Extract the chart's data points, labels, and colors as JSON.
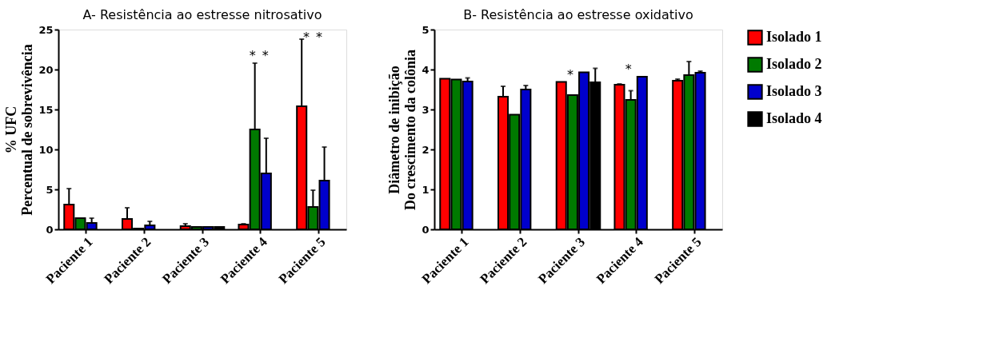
{
  "chart_data": [
    {
      "type": "bar",
      "title": "A- Resistência ao estresse nitrosativo",
      "ylabel": "% UFC\nPercentual de sobrevivência",
      "categories": [
        "Paciente 1",
        "Paciente 2",
        "Paciente 3",
        "Paciente 4",
        "Paciente 5"
      ],
      "series": [
        {
          "name": "Isolado 1",
          "color": "#ff0000",
          "values": [
            3.1,
            1.3,
            0.4,
            0.6,
            15.4
          ],
          "errors": [
            [
              3.1,
              5.1
            ],
            [
              1.3,
              2.7
            ],
            [
              0.4,
              0.7
            ],
            [
              0.6,
              0.7
            ],
            [
              15.4,
              23.8
            ]
          ]
        },
        {
          "name": "Isolado 2",
          "color": "#007a00",
          "values": [
            1.4,
            0.1,
            0.3,
            12.5,
            2.8
          ],
          "errors": [
            null,
            null,
            null,
            [
              12.5,
              20.8
            ],
            [
              2.8,
              4.9
            ]
          ]
        },
        {
          "name": "Isolado 3",
          "color": "#0000cc",
          "values": [
            0.8,
            0.5,
            0.3,
            7.0,
            6.1
          ],
          "errors": [
            [
              0.8,
              1.4
            ],
            [
              0.5,
              1.0
            ],
            null,
            [
              7.0,
              11.4
            ],
            [
              6.1,
              10.3
            ]
          ]
        },
        {
          "name": "Isolado 4",
          "color": "#000000",
          "values": [
            null,
            null,
            0.3,
            null,
            null
          ],
          "errors": [
            null,
            null,
            null,
            null,
            null
          ]
        }
      ],
      "ylim": [
        0,
        25
      ],
      "yticks": [
        0,
        5,
        10,
        15,
        20,
        25
      ],
      "grid": false,
      "legend": "right",
      "annotations": [
        {
          "text": "*",
          "x": "Paciente 4",
          "y": 20.8
        },
        {
          "text": "*",
          "x": "Paciente 4",
          "y": 20.8
        },
        "*",
        "*"
      ]
    },
    {
      "type": "bar",
      "title": "B- Resistência ao estresse oxidativo",
      "ylabel": "Diâmetro de inibição\nDo crescimento da colônia",
      "categories": [
        "Paciente 1",
        "Paciente 2",
        "Paciente 3",
        "Paciente 4",
        "Paciente 5"
      ],
      "series": [
        {
          "name": "Isolado 1",
          "color": "#ff0000",
          "values": [
            3.77,
            3.32,
            3.69,
            3.62,
            3.72
          ],
          "errors": [
            null,
            [
              3.32,
              3.58
            ],
            null,
            [
              3.62,
              3.64
            ],
            [
              3.72,
              3.76
            ]
          ]
        },
        {
          "name": "Isolado 2",
          "color": "#007a00",
          "values": [
            3.75,
            2.87,
            3.36,
            3.24,
            3.86
          ],
          "errors": [
            null,
            null,
            null,
            [
              3.24,
              3.47
            ],
            [
              3.86,
              4.2
            ]
          ]
        },
        {
          "name": "Isolado 3",
          "color": "#0000cc",
          "values": [
            3.7,
            3.5,
            3.93,
            3.82,
            3.92
          ],
          "errors": [
            [
              3.7,
              3.79
            ],
            [
              3.5,
              3.6
            ],
            null,
            null,
            [
              3.92,
              3.96
            ]
          ]
        },
        {
          "name": "Isolado 4",
          "color": "#000000",
          "values": [
            null,
            null,
            3.68,
            null,
            null
          ],
          "errors": [
            null,
            null,
            [
              3.68,
              4.03
            ],
            null,
            null
          ]
        }
      ],
      "ylim": [
        0,
        5
      ],
      "yticks": [
        0,
        1,
        2,
        3,
        4,
        5
      ],
      "grid": false,
      "legend": "right",
      "annotations": [
        {
          "text": "*",
          "x": "Paciente 3",
          "y": 3.69
        },
        {
          "text": "*",
          "x": "Paciente 4",
          "y": 3.82
        }
      ]
    }
  ]
}
